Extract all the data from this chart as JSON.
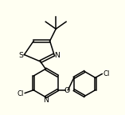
{
  "bg_color": "#fffff2",
  "bond_color": "#000000",
  "atom_color": "#000000",
  "linewidth": 1.1,
  "font_size": 6.2
}
